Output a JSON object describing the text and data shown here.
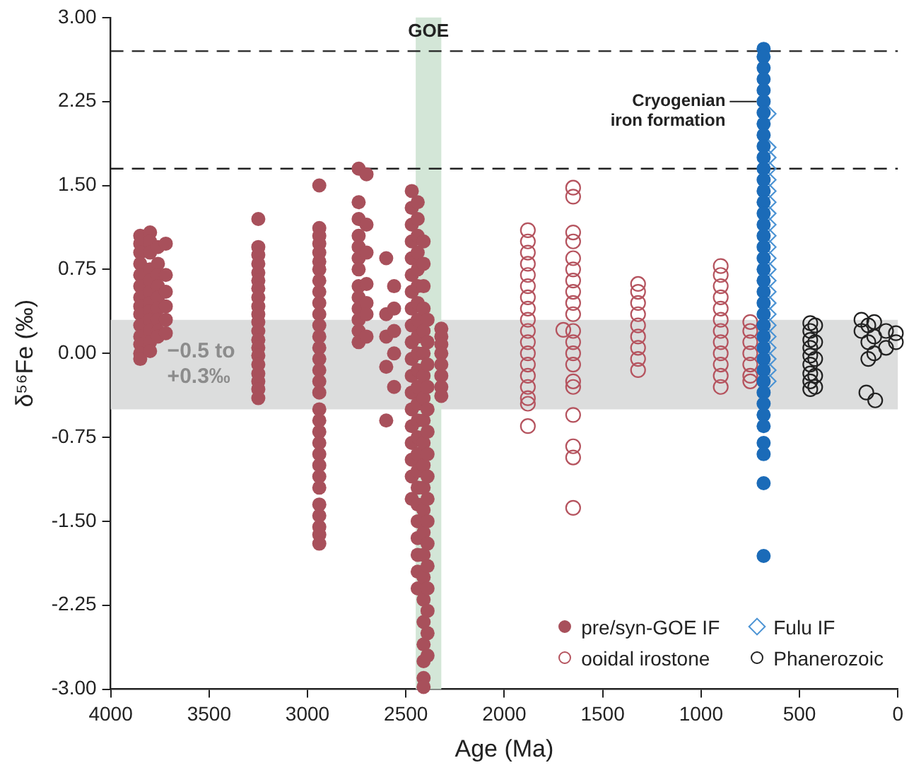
{
  "chart_data": {
    "type": "scatter",
    "xlabel": "Age (Ma)",
    "ylabel": "δ⁵⁶Fe (‰)",
    "xlim": [
      4000,
      0
    ],
    "xticks": [
      4000,
      3500,
      3000,
      2500,
      2000,
      1500,
      1000,
      500,
      0
    ],
    "ylim": [
      -3,
      3
    ],
    "yticks": [
      {
        "value": 3,
        "label": "3.00"
      },
      {
        "value": 2.25,
        "label": "2.25"
      },
      {
        "value": 1.5,
        "label": "1.50"
      },
      {
        "value": 0.75,
        "label": "0.75"
      },
      {
        "value": 0,
        "label": "0.00"
      },
      {
        "value": -0.75,
        "label": "-0.75"
      },
      {
        "value": -1.5,
        "label": "-1.50"
      },
      {
        "value": -2.25,
        "label": "-2.25"
      },
      {
        "value": -3,
        "label": "-3.00"
      }
    ],
    "grid": false,
    "legend": "bottom right",
    "marker": "circle",
    "series": [
      {
        "name": "pre/syn-GOE IF",
        "color": "#a8505b",
        "x": [
          3850,
          3850,
          3850,
          3850,
          3850,
          3850,
          3850,
          3850,
          3850,
          3850,
          3850,
          3850,
          3850,
          3850,
          3800,
          3800,
          3800,
          3800,
          3800,
          3800,
          3800,
          3800,
          3800,
          3800,
          3800,
          3800,
          3760,
          3760,
          3760,
          3760,
          3760,
          3760,
          3760,
          3760,
          3760,
          3720,
          3720,
          3720,
          3720,
          3720,
          3720,
          3250,
          3250,
          3250,
          3250,
          3250,
          3250,
          3250,
          3250,
          3250,
          3250,
          3250,
          3250,
          3250,
          3250,
          3250,
          3250,
          3250,
          3250,
          3250,
          3250,
          2940,
          2940,
          2940,
          2940,
          2940,
          2940,
          2940,
          2940,
          2940,
          2940,
          2940,
          2940,
          2940,
          2940,
          2940,
          2940,
          2940,
          2940,
          2940,
          2940,
          2940,
          2940,
          2940,
          2940,
          2940,
          2940,
          2940,
          2940,
          2940,
          2940,
          2940,
          2740,
          2740,
          2740,
          2740,
          2740,
          2740,
          2740,
          2740,
          2740,
          2740,
          2740,
          2740,
          2740,
          2700,
          2700,
          2700,
          2700,
          2700,
          2700,
          2700,
          2600,
          2600,
          2600,
          2600,
          2600,
          2560,
          2560,
          2560,
          2560,
          2560,
          2470,
          2470,
          2470,
          2470,
          2470,
          2470,
          2470,
          2470,
          2470,
          2470,
          2470,
          2470,
          2470,
          2470,
          2470,
          2470,
          2470,
          2470,
          2470,
          2440,
          2440,
          2440,
          2440,
          2440,
          2440,
          2440,
          2440,
          2440,
          2440,
          2440,
          2440,
          2440,
          2440,
          2440,
          2440,
          2440,
          2440,
          2440,
          2440,
          2440,
          2440,
          2440,
          2440,
          2410,
          2410,
          2410,
          2410,
          2410,
          2410,
          2410,
          2410,
          2410,
          2410,
          2410,
          2410,
          2410,
          2410,
          2410,
          2410,
          2410,
          2410,
          2410,
          2410,
          2410,
          2410,
          2390,
          2390,
          2390,
          2390,
          2390,
          2390,
          2390,
          2390,
          2390,
          2390,
          2390,
          2390,
          2390,
          2390,
          2390,
          2390,
          2320,
          2320,
          2320,
          2320,
          2320,
          2320,
          2320,
          2320
        ],
        "values": [
          1.05,
          0.98,
          0.9,
          0.8,
          0.7,
          0.6,
          0.5,
          0.42,
          0.35,
          0.25,
          0.15,
          0.08,
          0,
          -0.05,
          1.08,
          1,
          0.9,
          0.75,
          0.65,
          0.55,
          0.45,
          0.38,
          0.3,
          0.2,
          0.1,
          0.02,
          0.95,
          0.8,
          0.7,
          0.6,
          0.5,
          0.4,
          0.3,
          0.2,
          0.15,
          0.98,
          0.7,
          0.55,
          0.42,
          0.3,
          0.18,
          1.2,
          0.95,
          0.88,
          0.8,
          0.72,
          0.65,
          0.58,
          0.5,
          0.42,
          0.35,
          0.28,
          0.2,
          0.12,
          0.05,
          -0.02,
          -0.1,
          -0.18,
          -0.25,
          -0.32,
          -0.4,
          1.5,
          1.12,
          1.05,
          0.98,
          0.9,
          0.82,
          0.75,
          0.65,
          0.55,
          0.45,
          0.35,
          0.25,
          0.15,
          0.05,
          -0.05,
          -0.15,
          -0.25,
          -0.35,
          -0.5,
          -0.6,
          -0.7,
          -0.8,
          -0.9,
          -1,
          -1.1,
          -1.2,
          -1.35,
          -1.45,
          -1.55,
          -1.62,
          -1.7,
          1.65,
          1.35,
          1.2,
          1.05,
          0.95,
          0.85,
          0.75,
          0.6,
          0.5,
          0.4,
          0.3,
          0.2,
          0.1,
          1.6,
          1.15,
          0.9,
          0.62,
          0.45,
          0.35,
          0.15,
          0.85,
          0.35,
          0.15,
          -0.12,
          -0.6,
          0.6,
          0.4,
          0.2,
          0,
          -0.3,
          1.45,
          1.3,
          1.15,
          1,
          0.85,
          0.7,
          0.55,
          0.4,
          0.25,
          0.1,
          -0.05,
          -0.2,
          -0.35,
          -0.5,
          -0.65,
          -0.8,
          -0.95,
          -1.1,
          -1.3,
          1.35,
          1.2,
          1.05,
          0.9,
          0.75,
          0.6,
          0.45,
          0.3,
          0.15,
          0,
          -0.15,
          -0.3,
          -0.45,
          -0.6,
          -0.75,
          -0.9,
          -1.05,
          -1.2,
          -1.35,
          -1.5,
          -1.65,
          -1.8,
          -1.95,
          -2.1,
          1,
          0.8,
          0.6,
          0.4,
          0.2,
          0,
          -0.2,
          -0.4,
          -0.6,
          -0.8,
          -1,
          -1.2,
          -1.4,
          -1.6,
          -1.8,
          -2,
          -2.2,
          -2.4,
          -2.6,
          -2.75,
          -2.9,
          -2.98,
          0.3,
          0.1,
          -0.1,
          -0.3,
          -0.5,
          -0.7,
          -0.9,
          -1.1,
          -1.3,
          -1.5,
          -1.7,
          -1.9,
          -2.1,
          -2.3,
          -2.5,
          -2.7,
          0.22,
          0.15,
          0.08,
          0,
          -0.1,
          -0.2,
          -0.3,
          -0.38
        ]
      },
      {
        "color": "#1b6bb8",
        "x": [
          682,
          682,
          682,
          682,
          682,
          682,
          682,
          682,
          682,
          682,
          682,
          682,
          682,
          682,
          682,
          682,
          682,
          682,
          682,
          682,
          682,
          682,
          682,
          682,
          682,
          682,
          682,
          682,
          682,
          682,
          682,
          682,
          682,
          682,
          682,
          682,
          682,
          682,
          682
        ],
        "values": [
          2.72,
          2.65,
          2.55,
          2.45,
          2.35,
          2.25,
          2.15,
          2.05,
          1.95,
          1.85,
          1.75,
          1.65,
          1.55,
          1.45,
          1.35,
          1.25,
          1.15,
          1.05,
          0.95,
          0.85,
          0.75,
          0.65,
          0.55,
          0.45,
          0.35,
          0.25,
          0.15,
          0.05,
          -0.05,
          -0.15,
          -0.25,
          -0.35,
          -0.45,
          -0.55,
          -0.65,
          -0.8,
          -0.9,
          -1.16,
          -1.81
        ]
      },
      {
        "name": "Fulu IF",
        "color": "#4b93d4",
        "marker": "diamond",
        "x": [
          660,
          660,
          660,
          660,
          660,
          660,
          660,
          660,
          660,
          660,
          660,
          660,
          660,
          660,
          660,
          660,
          660,
          660,
          660,
          660,
          660,
          660,
          660
        ],
        "values": [
          2.14,
          1.84,
          1.75,
          1.65,
          1.55,
          1.45,
          1.35,
          1.25,
          1.15,
          1.05,
          0.95,
          0.85,
          0.75,
          0.65,
          0.55,
          0.45,
          0.35,
          0.25,
          0.15,
          0.05,
          -0.05,
          -0.15,
          -0.25
        ]
      },
      {
        "name": "ooidal irostone",
        "color": "#b5535e",
        "marker": "circle",
        "x": [
          1880,
          1880,
          1880,
          1880,
          1880,
          1880,
          1880,
          1880,
          1880,
          1880,
          1880,
          1880,
          1880,
          1880,
          1880,
          1880,
          1880,
          1880,
          1650,
          1650,
          1650,
          1650,
          1650,
          1650,
          1650,
          1650,
          1650,
          1650,
          1650,
          1650,
          1650,
          1650,
          1650,
          1650,
          1650,
          1650,
          1650,
          1650,
          1700,
          1320,
          1320,
          1320,
          1320,
          1320,
          1320,
          1320,
          1320,
          1320,
          900,
          900,
          900,
          900,
          900,
          900,
          900,
          900,
          900,
          900,
          900,
          900,
          750,
          750,
          750,
          750,
          750,
          750,
          750
        ],
        "values": [
          1.1,
          1,
          0.9,
          0.8,
          0.7,
          0.6,
          0.5,
          0.4,
          0.3,
          0.2,
          0.1,
          0,
          -0.1,
          -0.2,
          -0.3,
          -0.4,
          -0.45,
          -0.65,
          1.48,
          1.4,
          1.08,
          1,
          0.85,
          0.75,
          0.65,
          0.55,
          0.45,
          0.35,
          0.2,
          0.1,
          0,
          -0.1,
          -0.25,
          -0.3,
          -0.55,
          -0.83,
          -0.93,
          -1.38,
          0.21,
          0.62,
          0.55,
          0.45,
          0.35,
          0.25,
          0.15,
          0.05,
          -0.05,
          -0.15,
          0.78,
          0.7,
          0.6,
          0.5,
          0.4,
          0.3,
          0.2,
          0.1,
          0,
          -0.1,
          -0.2,
          -0.3,
          0.28,
          0.2,
          0.1,
          0,
          -0.1,
          -0.2,
          -0.25
        ]
      },
      {
        "name": "Phanerozoic",
        "color": "#222222",
        "marker": "circle",
        "x": [
          445,
          445,
          445,
          445,
          445,
          445,
          445,
          445,
          445,
          420,
          420,
          420,
          420,
          420,
          185,
          185,
          150,
          150,
          150,
          120,
          120,
          120,
          60,
          60,
          10,
          10,
          160,
          115
        ],
        "values": [
          0.27,
          0.2,
          0.12,
          0.05,
          -0.02,
          -0.1,
          -0.18,
          -0.25,
          -0.32,
          0.25,
          0.1,
          -0.05,
          -0.2,
          -0.3,
          0.3,
          0.2,
          0.25,
          0.1,
          -0.05,
          0.28,
          0.15,
          0,
          0.2,
          0.05,
          0.18,
          0.1,
          -0.35,
          -0.42
        ]
      }
    ],
    "ref_lines": [
      {
        "axis": "y",
        "value": 2.7,
        "color": "#222222",
        "line_style": "dashed"
      },
      {
        "axis": "y",
        "value": 1.65,
        "color": "#222222",
        "line_style": "dashed"
      }
    ],
    "bands": [
      {
        "axis": "y",
        "from": -0.5,
        "to": 0.3,
        "label": "−0.5 to\n+0.3‰",
        "color": "#dcdddd"
      },
      {
        "axis": "x",
        "from": 2450,
        "to": 2320,
        "label": "GOE",
        "color": "#d3e6d7"
      }
    ],
    "annotations": [
      {
        "text": "Cryogenian\niron formation",
        "x": 682,
        "y": 2.25
      }
    ]
  }
}
